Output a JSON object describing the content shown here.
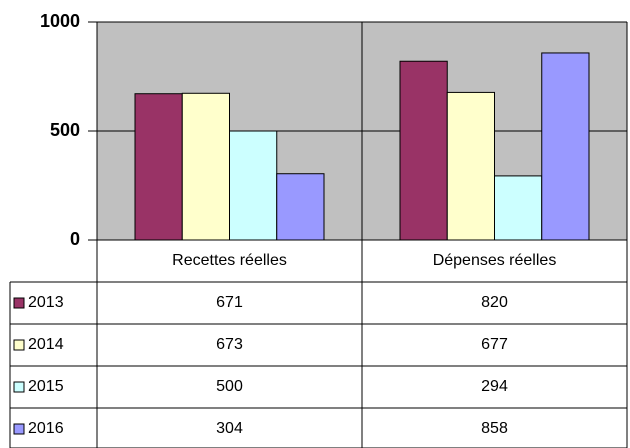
{
  "chart_data": {
    "type": "bar",
    "categories": [
      "Recettes réelles",
      "Dépenses réelles"
    ],
    "series": [
      {
        "name": "2013",
        "color": "#993366",
        "values": [
          671,
          820
        ]
      },
      {
        "name": "2014",
        "color": "#FFFFCC",
        "values": [
          673,
          677
        ]
      },
      {
        "name": "2015",
        "color": "#CCFFFF",
        "values": [
          500,
          294
        ]
      },
      {
        "name": "2016",
        "color": "#9999FF",
        "values": [
          304,
          858
        ]
      }
    ],
    "ylim": [
      0,
      1000
    ],
    "yticks": [
      0,
      500,
      1000
    ],
    "grid": true,
    "legend": "table"
  }
}
